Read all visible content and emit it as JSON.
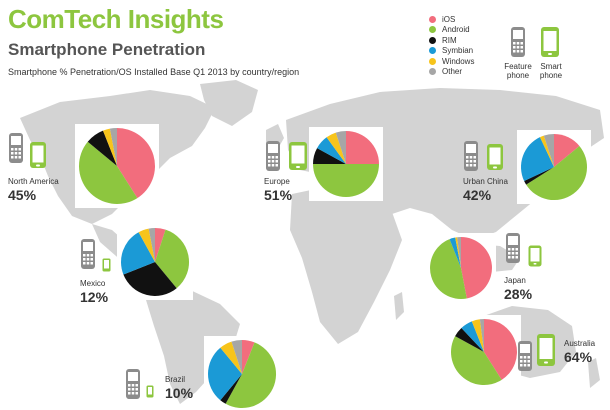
{
  "header": {
    "brand": "ComTech Insights",
    "subtitle": "Smartphone Penetration",
    "caption": "Smartphone % Penetration/OS Installed Base Q1 2013 by country/region"
  },
  "legend": {
    "items": [
      {
        "label": "iOS",
        "color": "#f26d7d"
      },
      {
        "label": "Android",
        "color": "#8dc63f"
      },
      {
        "label": "RIM",
        "color": "#111111"
      },
      {
        "label": "Symbian",
        "color": "#1b9ad6"
      },
      {
        "label": "Windows",
        "color": "#f7c41b"
      },
      {
        "label": "Other",
        "color": "#a6a6a6"
      }
    ],
    "feature_phone": "Feature phone",
    "smart_phone": "Smart phone"
  },
  "colors": {
    "brand": "#8dc63f",
    "map": "#d3d3d3",
    "feature_phone_icon": "#8c8c8c",
    "smart_phone_icon": "#8dc63f"
  },
  "chart_data": {
    "type": "pie",
    "series_order": [
      "iOS",
      "Android",
      "RIM",
      "Symbian",
      "Windows",
      "Other"
    ],
    "regions": [
      {
        "name": "North America",
        "penetration": "45%",
        "penetration_value": 45,
        "shares": [
          41,
          45,
          8,
          0,
          3,
          3
        ]
      },
      {
        "name": "Europe",
        "penetration": "51%",
        "penetration_value": 51,
        "shares": [
          25,
          50,
          8,
          7,
          5,
          5
        ]
      },
      {
        "name": "Urban China",
        "penetration": "42%",
        "penetration_value": 42,
        "shares": [
          14,
          52,
          2,
          25,
          2,
          5
        ]
      },
      {
        "name": "Mexico",
        "penetration": "12%",
        "penetration_value": 12,
        "shares": [
          5,
          34,
          30,
          23,
          5,
          3
        ]
      },
      {
        "name": "Japan",
        "penetration": "28%",
        "penetration_value": 28,
        "shares": [
          47,
          47,
          0,
          3,
          1,
          2
        ]
      },
      {
        "name": "Brazil",
        "penetration": "10%",
        "penetration_value": 10,
        "shares": [
          6,
          52,
          3,
          28,
          6,
          5
        ]
      },
      {
        "name": "Australia",
        "penetration": "64%",
        "penetration_value": 64,
        "shares": [
          41,
          42,
          5,
          6,
          4,
          2
        ]
      }
    ]
  }
}
